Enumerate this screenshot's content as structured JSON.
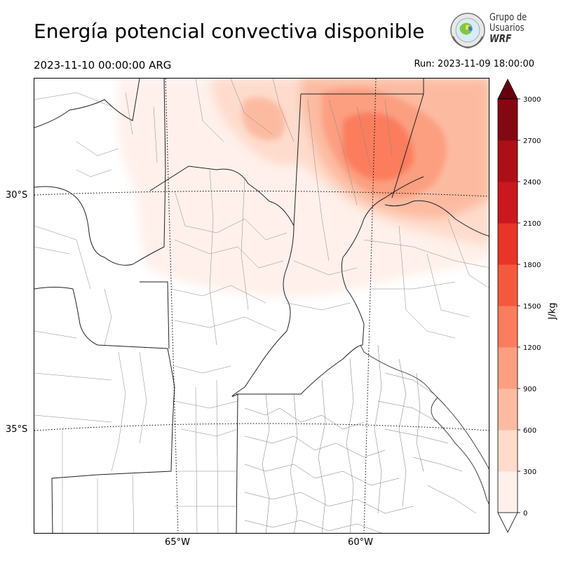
{
  "header": {
    "title": "Energía potencial convectiva disponible",
    "valid_time": "2023-11-10 00:00:00 ARG",
    "run_time": "Run: 2023-11-09 18:00:00"
  },
  "logo": {
    "line1": "Grupo de",
    "line2": "Usuarios",
    "line3": "WRF"
  },
  "map": {
    "lat_labels": [
      "30°S",
      "35°S"
    ],
    "lon_labels": [
      "65°W",
      "60°W"
    ]
  },
  "colorbar": {
    "unit": "J/kg",
    "ticks": [
      "0",
      "300",
      "600",
      "900",
      "1200",
      "1500",
      "1800",
      "2100",
      "2400",
      "2700",
      "3000"
    ],
    "colors": [
      "#fff0eb",
      "#fedbcc",
      "#fcbba1",
      "#fc9f81",
      "#fb7d5d",
      "#f5593d",
      "#e93528",
      "#cb181d",
      "#ac1016",
      "#830812",
      "#67000d"
    ]
  }
}
